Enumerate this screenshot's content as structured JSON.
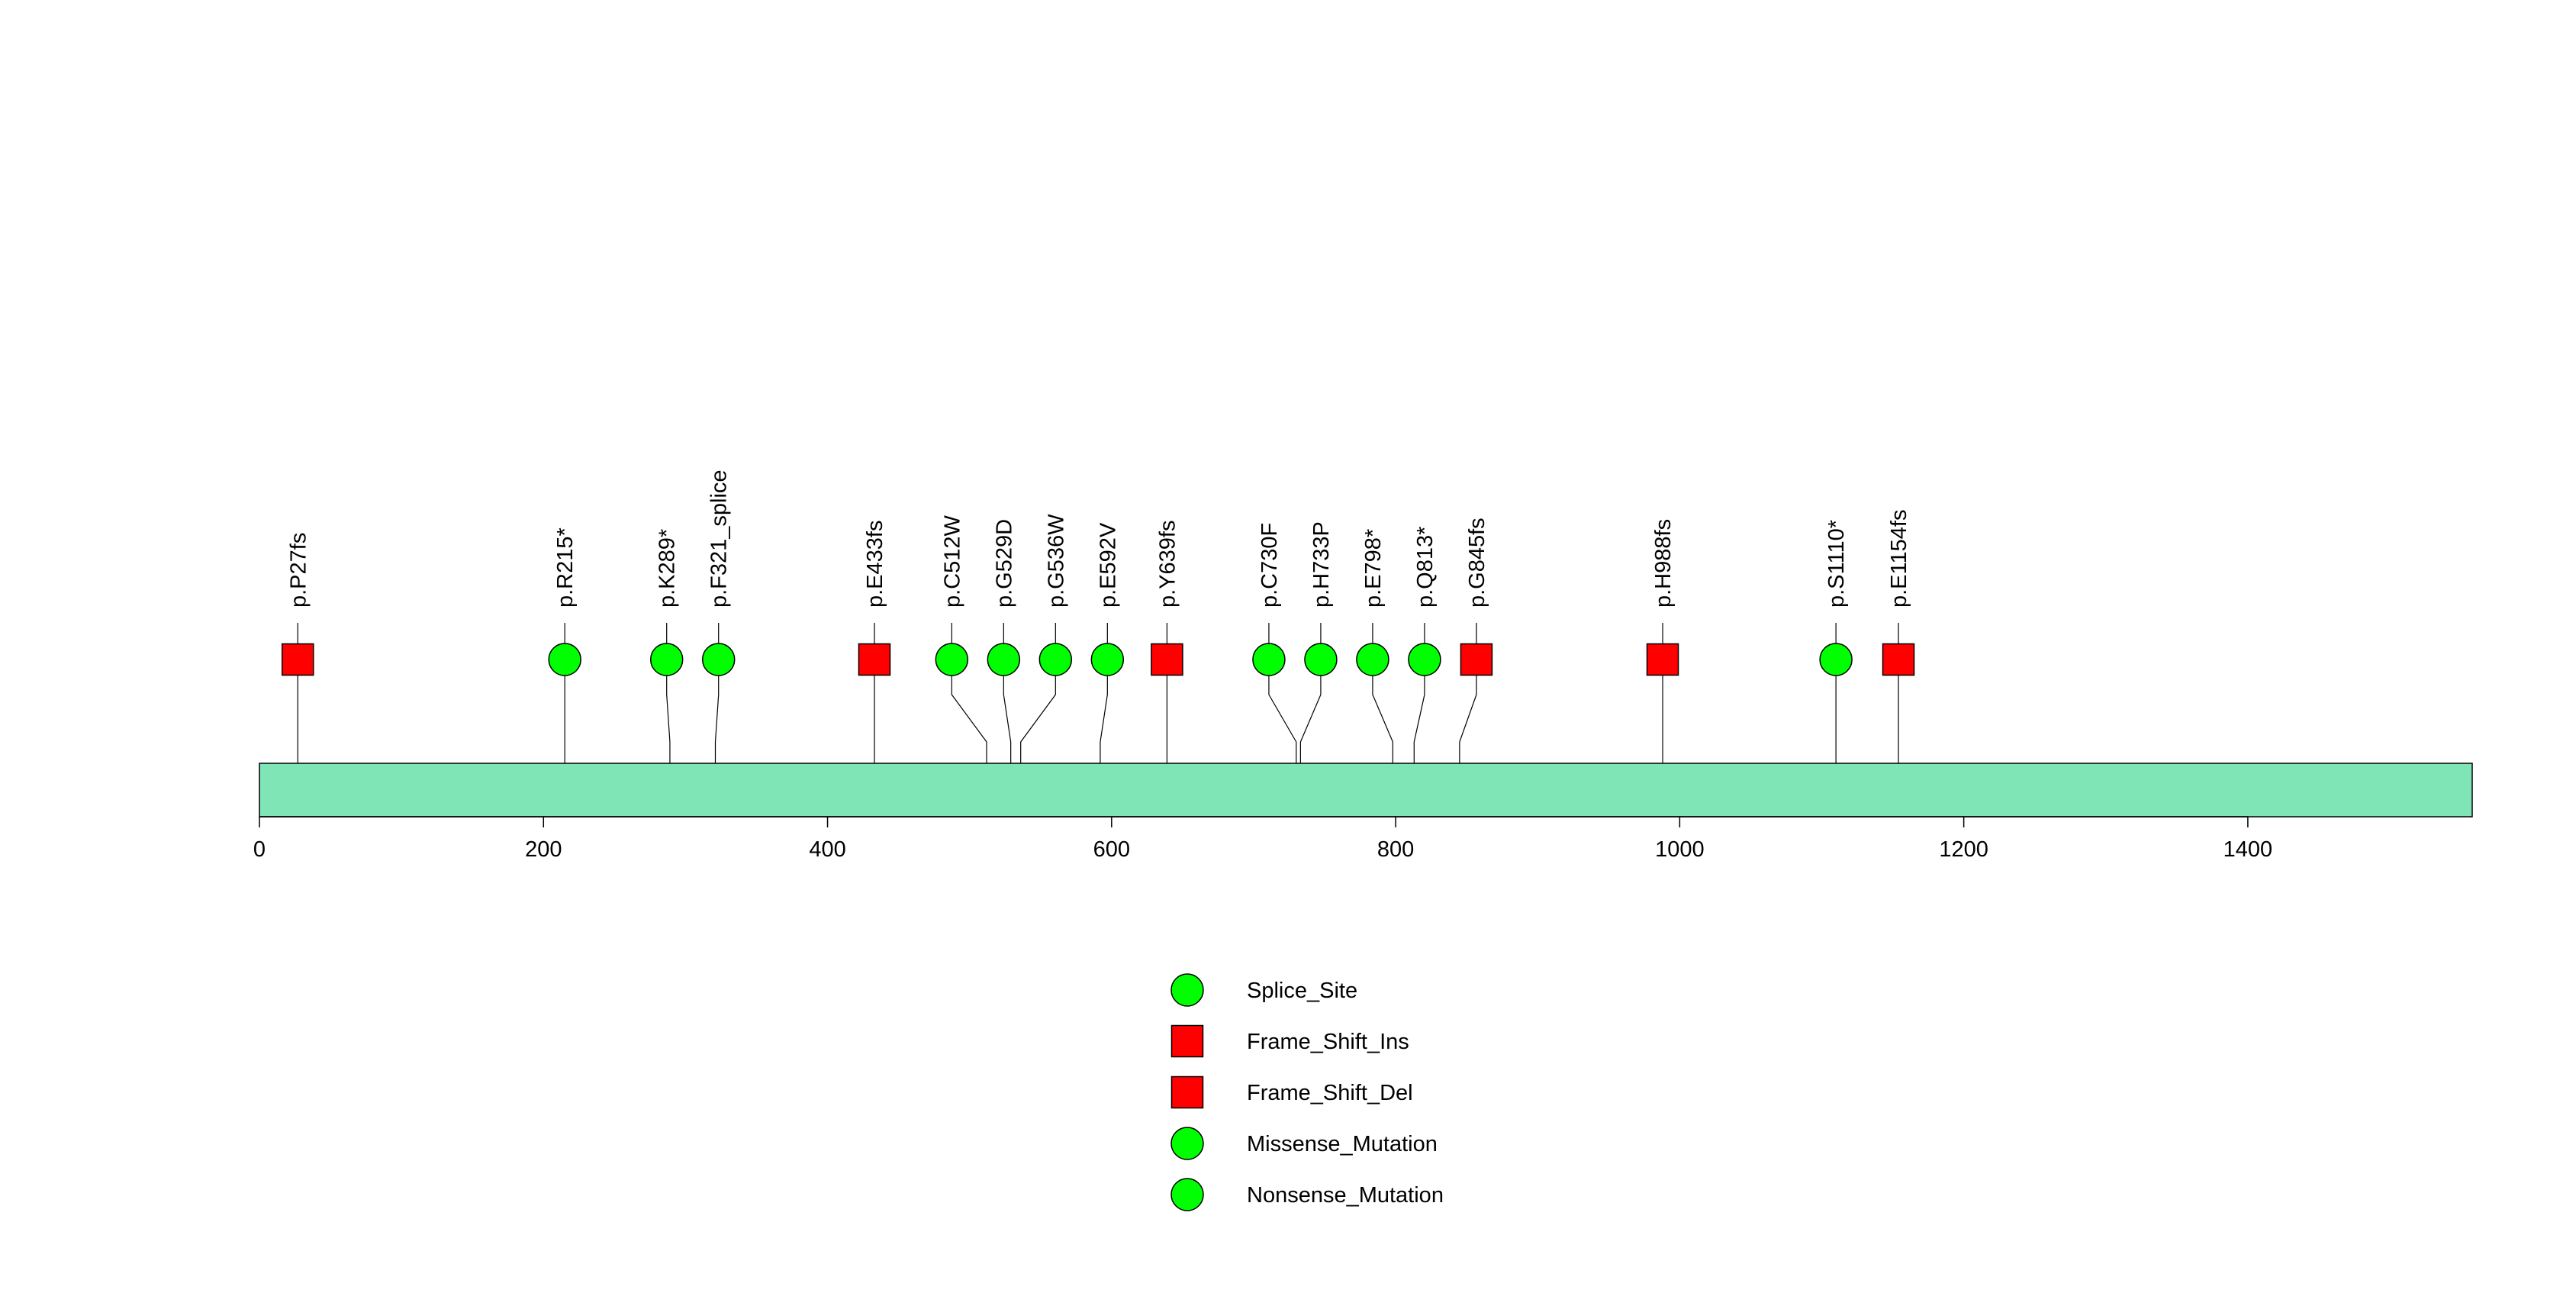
{
  "chart_data": {
    "type": "lollipop",
    "title": "",
    "xlabel": "",
    "ylabel": "",
    "protein_length": 1558,
    "xlim": [
      0,
      1558
    ],
    "x_ticks": [
      0,
      200,
      400,
      600,
      800,
      1000,
      1200,
      1400
    ],
    "x_tick_labels": [
      "0",
      "200",
      "400",
      "600",
      "800",
      "1000",
      "1200",
      "1400"
    ],
    "protein_color": "#7FE5B6",
    "line_color": "#000000",
    "mutations": [
      {
        "label": "p.P27fs",
        "position": 27,
        "type": "Frame_Shift_Del"
      },
      {
        "label": "p.R215*",
        "position": 215,
        "type": "Nonsense_Mutation"
      },
      {
        "label": "p.K289*",
        "position": 289,
        "type": "Nonsense_Mutation"
      },
      {
        "label": "p.F321_splice",
        "position": 321,
        "type": "Splice_Site"
      },
      {
        "label": "p.E433fs",
        "position": 433,
        "type": "Frame_Shift_Del"
      },
      {
        "label": "p.C512W",
        "position": 512,
        "type": "Missense_Mutation"
      },
      {
        "label": "p.G529D",
        "position": 529,
        "type": "Missense_Mutation"
      },
      {
        "label": "p.G536W",
        "position": 536,
        "type": "Missense_Mutation"
      },
      {
        "label": "p.E592V",
        "position": 592,
        "type": "Missense_Mutation"
      },
      {
        "label": "p.Y639fs",
        "position": 639,
        "type": "Frame_Shift_Ins"
      },
      {
        "label": "p.C730F",
        "position": 730,
        "type": "Missense_Mutation"
      },
      {
        "label": "p.H733P",
        "position": 733,
        "type": "Missense_Mutation"
      },
      {
        "label": "p.E798*",
        "position": 798,
        "type": "Nonsense_Mutation"
      },
      {
        "label": "p.Q813*",
        "position": 813,
        "type": "Nonsense_Mutation"
      },
      {
        "label": "p.G845fs",
        "position": 845,
        "type": "Frame_Shift_Del"
      },
      {
        "label": "p.H988fs",
        "position": 988,
        "type": "Frame_Shift_Del"
      },
      {
        "label": "p.S1110*",
        "position": 1110,
        "type": "Nonsense_Mutation"
      },
      {
        "label": "p.E1154fs",
        "position": 1154,
        "type": "Frame_Shift_Del"
      }
    ],
    "legend": {
      "placement": "bottom-center",
      "entries": [
        {
          "label": "Splice_Site",
          "shape": "circle",
          "color": "#00FF00"
        },
        {
          "label": "Frame_Shift_Ins",
          "shape": "square",
          "color": "#FF0000"
        },
        {
          "label": "Frame_Shift_Del",
          "shape": "square",
          "color": "#FF0000"
        },
        {
          "label": "Missense_Mutation",
          "shape": "circle",
          "color": "#00FF00"
        },
        {
          "label": "Nonsense_Mutation",
          "shape": "circle",
          "color": "#00FF00"
        }
      ]
    }
  }
}
